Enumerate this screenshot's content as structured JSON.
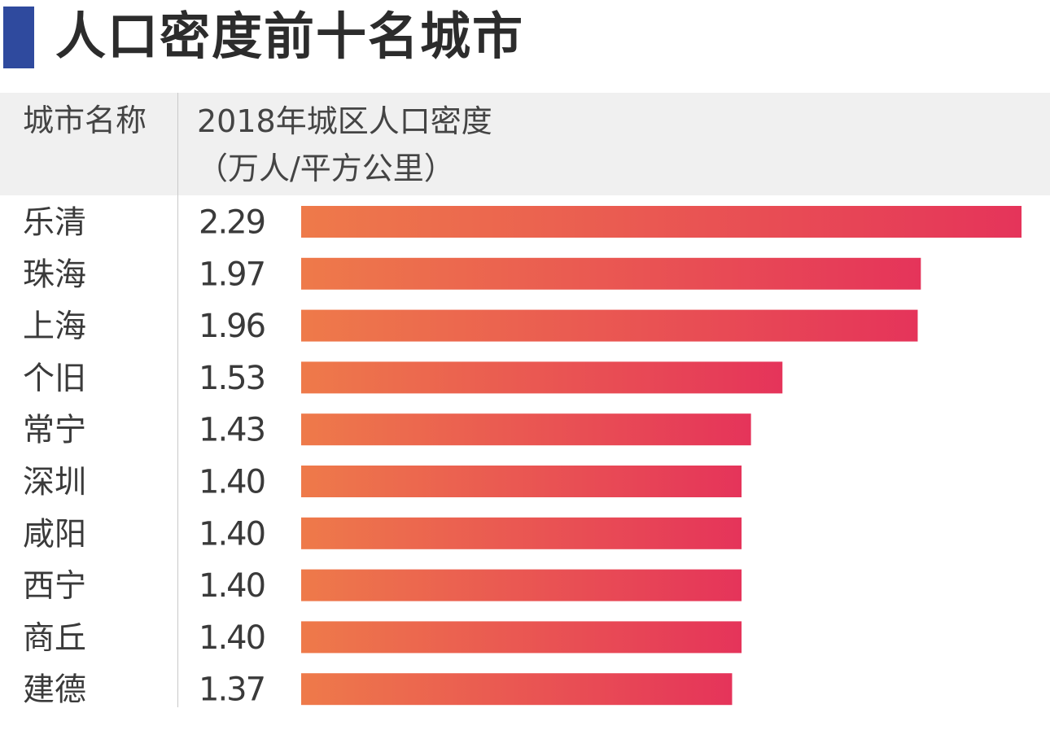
{
  "title": "人口密度前十名城市",
  "colors": {
    "title_accent": "#2f4a9e",
    "header_bg": "#f0f0f0",
    "bar_start": "#ee7a4a",
    "bar_end": "#e5345a"
  },
  "table_header": {
    "col1": "城市名称",
    "col2_line1": "2018年城区人口密度",
    "col2_line2": "（万人/平方公里）"
  },
  "chart_data": {
    "type": "bar",
    "orientation": "horizontal",
    "title": "人口密度前十名城市",
    "xlabel": "",
    "ylabel": "",
    "value_label": "2018年城区人口密度（万人/平方公里）",
    "categories": [
      "乐清",
      "珠海",
      "上海",
      "个旧",
      "常宁",
      "深圳",
      "咸阳",
      "西宁",
      "商丘",
      "建德"
    ],
    "values": [
      2.29,
      1.97,
      1.96,
      1.53,
      1.43,
      1.4,
      1.4,
      1.4,
      1.4,
      1.37
    ],
    "value_labels": [
      "2.29",
      "1.97",
      "1.96",
      "1.53",
      "1.43",
      "1.40",
      "1.40",
      "1.40",
      "1.40",
      "1.37"
    ],
    "xlim": [
      0,
      2.29
    ],
    "grid": false,
    "legend": "none"
  }
}
